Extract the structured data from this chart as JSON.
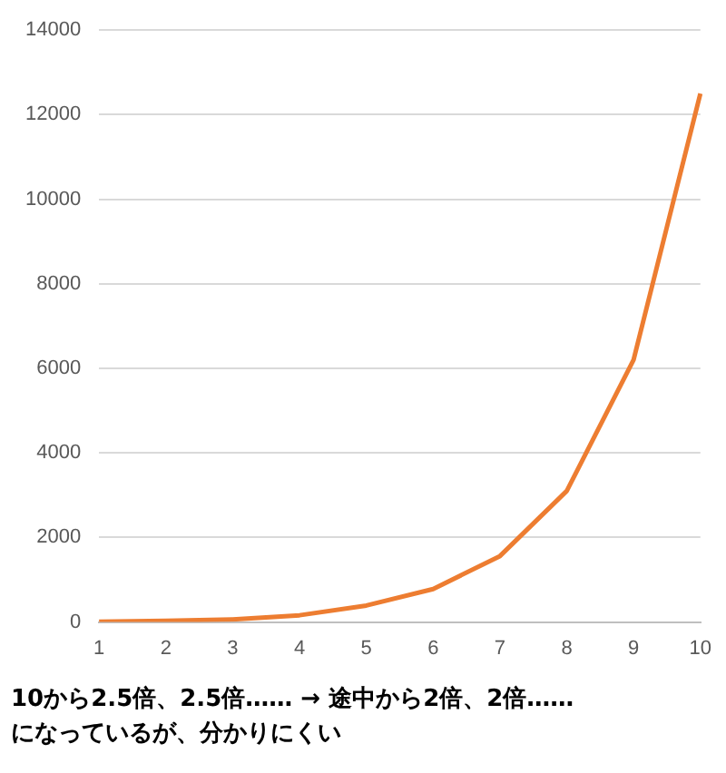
{
  "chart_data": {
    "type": "line",
    "categories": [
      "1",
      "2",
      "3",
      "4",
      "5",
      "6",
      "7",
      "8",
      "9",
      "10"
    ],
    "values": [
      10,
      30,
      60,
      160,
      390,
      780,
      1560,
      3100,
      6200,
      12500
    ],
    "color": "#ed7d31",
    "ylim": [
      0,
      14000
    ],
    "yticks": [
      0,
      2000,
      4000,
      6000,
      8000,
      10000,
      12000,
      14000
    ],
    "grid": "y",
    "marker": "none",
    "line_style": "solid",
    "annotations": [
      "10から2.5倍、2.5倍…… → 途中から2倍、2倍……",
      "になっているが、分かりにくい"
    ]
  }
}
